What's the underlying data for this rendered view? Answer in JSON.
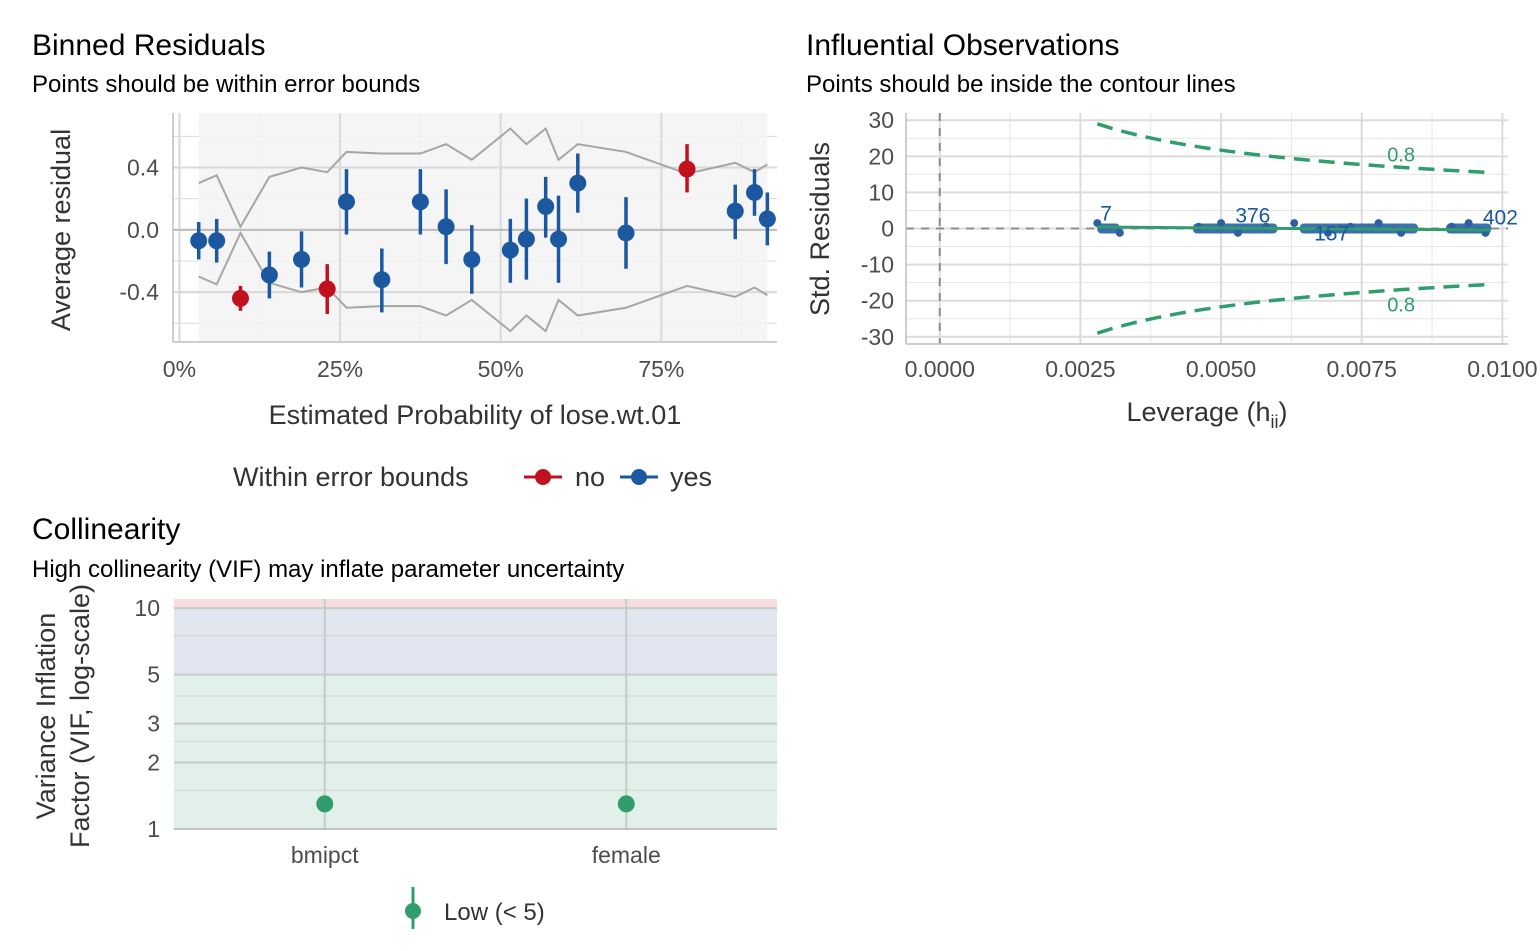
{
  "colors": {
    "no": "#c2101f",
    "yes": "#1b58a0",
    "bound_line": "#a6a6a6",
    "contour": "#2f9e6c",
    "low_vif": "#2f9e6c",
    "zone_low": "#e1f0e8",
    "zone_mod": "#e0e5ef",
    "zone_high": "#f7dce0",
    "grid": "#dcdcdc",
    "panel_bg": "#f3f3f3"
  },
  "panels": {
    "binned": {
      "title": "Binned Residuals",
      "subtitle": "Points should be within error bounds",
      "xlabel": "Estimated Probability of lose.wt.01",
      "ylabel": "Average residual",
      "legend_title": "Within error bounds",
      "legend_no": "no",
      "legend_yes": "yes"
    },
    "influential": {
      "title": "Influential Observations",
      "subtitle": "Points should be inside the contour lines",
      "xlabel": "Leverage (h",
      "xlabel_sub": "ii",
      "xlabel_close": ")",
      "ylabel": "Std. Residuals"
    },
    "collinearity": {
      "title": "Collinearity",
      "subtitle": "High collinearity (VIF) may inflate parameter uncertainty",
      "ylabel_line1": "Variance Inflation",
      "ylabel_line2": "Factor (VIF, log-scale)",
      "legend_label": "Low (< 5)"
    }
  },
  "chart_data": [
    {
      "type": "scatter",
      "name_key": "binned",
      "x_unit": "probability",
      "xlim": [
        -0.01,
        0.93
      ],
      "ylim": [
        -0.72,
        0.75
      ],
      "x_ticks": [
        0,
        0.25,
        0.5,
        0.75
      ],
      "x_tick_labels": [
        "0%",
        "25%",
        "50%",
        "75%"
      ],
      "y_ticks": [
        -0.4,
        0.0,
        0.4
      ],
      "y_tick_labels": [
        "-0.4",
        "0.0",
        "0.4"
      ],
      "shaded_range": [
        0.03,
        0.915
      ],
      "points": [
        {
          "x": 0.03,
          "y": -0.07,
          "lo": -0.19,
          "hi": 0.05,
          "group": "yes"
        },
        {
          "x": 0.058,
          "y": -0.07,
          "lo": -0.21,
          "hi": 0.07,
          "group": "yes"
        },
        {
          "x": 0.095,
          "y": -0.44,
          "lo": -0.52,
          "hi": -0.36,
          "group": "no"
        },
        {
          "x": 0.14,
          "y": -0.29,
          "lo": -0.44,
          "hi": -0.14,
          "group": "yes"
        },
        {
          "x": 0.19,
          "y": -0.19,
          "lo": -0.37,
          "hi": -0.01,
          "group": "yes"
        },
        {
          "x": 0.23,
          "y": -0.38,
          "lo": -0.54,
          "hi": -0.22,
          "group": "no"
        },
        {
          "x": 0.26,
          "y": 0.18,
          "lo": -0.03,
          "hi": 0.39,
          "group": "yes"
        },
        {
          "x": 0.315,
          "y": -0.32,
          "lo": -0.53,
          "hi": -0.12,
          "group": "yes"
        },
        {
          "x": 0.375,
          "y": 0.18,
          "lo": -0.03,
          "hi": 0.39,
          "group": "yes"
        },
        {
          "x": 0.415,
          "y": 0.02,
          "lo": -0.22,
          "hi": 0.26,
          "group": "yes"
        },
        {
          "x": 0.455,
          "y": -0.19,
          "lo": -0.41,
          "hi": 0.03,
          "group": "yes"
        },
        {
          "x": 0.515,
          "y": -0.13,
          "lo": -0.34,
          "hi": 0.07,
          "group": "yes"
        },
        {
          "x": 0.54,
          "y": -0.06,
          "lo": -0.32,
          "hi": 0.2,
          "group": "yes"
        },
        {
          "x": 0.57,
          "y": 0.15,
          "lo": -0.05,
          "hi": 0.34,
          "group": "yes"
        },
        {
          "x": 0.59,
          "y": -0.06,
          "lo": -0.34,
          "hi": 0.22,
          "group": "yes"
        },
        {
          "x": 0.62,
          "y": 0.3,
          "lo": 0.11,
          "hi": 0.49,
          "group": "yes"
        },
        {
          "x": 0.695,
          "y": -0.02,
          "lo": -0.25,
          "hi": 0.21,
          "group": "yes"
        },
        {
          "x": 0.79,
          "y": 0.39,
          "lo": 0.24,
          "hi": 0.55,
          "group": "no"
        },
        {
          "x": 0.865,
          "y": 0.12,
          "lo": -0.06,
          "hi": 0.29,
          "group": "yes"
        },
        {
          "x": 0.895,
          "y": 0.24,
          "lo": 0.09,
          "hi": 0.39,
          "group": "yes"
        },
        {
          "x": 0.915,
          "y": 0.07,
          "lo": -0.1,
          "hi": 0.24,
          "group": "yes"
        }
      ],
      "bounds_x": [
        0.03,
        0.058,
        0.095,
        0.14,
        0.19,
        0.23,
        0.26,
        0.315,
        0.375,
        0.415,
        0.455,
        0.515,
        0.54,
        0.57,
        0.59,
        0.62,
        0.695,
        0.79,
        0.865,
        0.895,
        0.915
      ],
      "bounds_upper": [
        0.3,
        0.35,
        0.02,
        0.34,
        0.4,
        0.37,
        0.5,
        0.49,
        0.49,
        0.55,
        0.45,
        0.65,
        0.55,
        0.65,
        0.45,
        0.55,
        0.5,
        0.36,
        0.43,
        0.37,
        0.42
      ],
      "bounds_lower": [
        -0.3,
        -0.35,
        -0.02,
        -0.34,
        -0.4,
        -0.37,
        -0.5,
        -0.49,
        -0.49,
        -0.55,
        -0.45,
        -0.65,
        -0.55,
        -0.65,
        -0.45,
        -0.55,
        -0.5,
        -0.36,
        -0.43,
        -0.37,
        -0.42
      ]
    },
    {
      "type": "scatter",
      "name_key": "influential",
      "xlim": [
        -0.0006,
        0.0101
      ],
      "ylim": [
        -32,
        32
      ],
      "x_ticks": [
        0,
        0.0025,
        0.005,
        0.0075,
        0.01
      ],
      "x_tick_labels": [
        "0.0000",
        "0.0025",
        "0.0050",
        "0.0075",
        "0.0100"
      ],
      "y_ticks": [
        -30,
        -20,
        -10,
        0,
        10,
        20,
        30
      ],
      "y_tick_labels": [
        "-30",
        "-20",
        "-10",
        "0",
        "10",
        "20",
        "30"
      ],
      "points_x_range": [
        0.0028,
        0.0098
      ],
      "point_clusters": [
        [
          0.0028,
          0.0032
        ],
        [
          0.0045,
          0.006
        ],
        [
          0.0064,
          0.0085
        ],
        [
          0.009,
          0.0098
        ]
      ],
      "contour_x_range": [
        0.0028,
        0.0098
      ],
      "contour_levels": [
        {
          "label": "0.8",
          "y_start": 29,
          "y_end": 15.5
        },
        {
          "label": "0.8",
          "y_start": -29,
          "y_end": -15.5
        }
      ],
      "labeled_points": [
        {
          "label": "7",
          "x": 0.0028,
          "y": 3
        },
        {
          "label": "376",
          "x": 0.0052,
          "y": 2.5
        },
        {
          "label": "157",
          "x": 0.0066,
          "y": -2.5
        },
        {
          "label": "402",
          "x": 0.0096,
          "y": 2
        }
      ]
    },
    {
      "type": "scatter",
      "name_key": "collinearity",
      "y_scale": "log",
      "ylim": [
        1,
        11
      ],
      "y_ticks": [
        1,
        2,
        3,
        5,
        10
      ],
      "y_tick_labels": [
        "1",
        "2",
        "3",
        "5",
        "10"
      ],
      "zones": [
        {
          "from": 1,
          "to": 5,
          "label": "low"
        },
        {
          "from": 5,
          "to": 10,
          "label": "moderate"
        },
        {
          "from": 10,
          "to": 11,
          "label": "high"
        }
      ],
      "categories": [
        "bmipct",
        "female"
      ],
      "values": [
        1.3,
        1.3
      ],
      "lo": [
        1.22,
        1.22
      ],
      "hi": [
        1.38,
        1.38
      ]
    }
  ]
}
